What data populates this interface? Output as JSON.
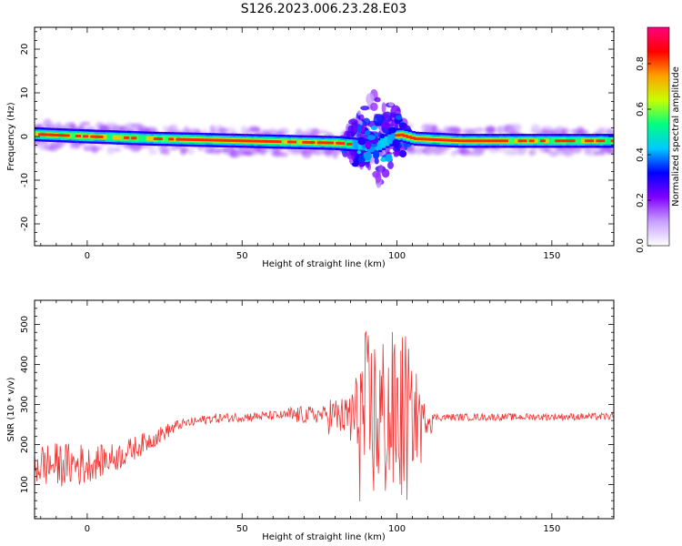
{
  "figure": {
    "title": "S126.2023.006.23.28.E03"
  },
  "chart_data": [
    {
      "type": "heatmap",
      "xlabel": "Height of straight line (km)",
      "ylabel": "Frequency (Hz)",
      "xlim": [
        -17,
        170
      ],
      "ylim": [
        -25,
        25
      ],
      "xticks": [
        0,
        50,
        100,
        150
      ],
      "yticks": [
        -20,
        -10,
        0,
        10,
        20
      ],
      "colorbar": {
        "label": "Normalized spectral amplitude",
        "range": [
          0.0,
          0.96
        ],
        "ticks": [
          0.0,
          0.2,
          0.4,
          0.6,
          0.8
        ],
        "colormap": [
          "#ffffff",
          "#c8a0ff",
          "#8000ff",
          "#0000ff",
          "#00c8ff",
          "#00ff80",
          "#c8ff00",
          "#ffa000",
          "#ff0000",
          "#ff0080"
        ]
      },
      "ridge": {
        "description_values": [
          {
            "x": -17,
            "freq": 0.5
          },
          {
            "x": 0,
            "freq": 0.0
          },
          {
            "x": 20,
            "freq": -0.5
          },
          {
            "x": 50,
            "freq": -1.0
          },
          {
            "x": 80,
            "freq": -1.5
          },
          {
            "x": 88,
            "freq": -2.0
          },
          {
            "x": 92,
            "freq": -2.5
          },
          {
            "x": 96,
            "freq": -1.0
          },
          {
            "x": 100,
            "freq": 0.5
          },
          {
            "x": 105,
            "freq": -0.5
          },
          {
            "x": 120,
            "freq": -1.0
          },
          {
            "x": 170,
            "freq": -1.0
          }
        ],
        "scatter_region": {
          "x": [
            82,
            104
          ],
          "freq": [
            -12,
            17
          ]
        }
      }
    },
    {
      "type": "line",
      "xlabel": "Height of straight line (km)",
      "ylabel": "SNR (10 * v/v)",
      "xlim": [
        -17,
        170
      ],
      "ylim": [
        15,
        560
      ],
      "xticks": [
        0,
        50,
        100,
        150
      ],
      "yticks": [
        100,
        200,
        300,
        400,
        500
      ],
      "series": [
        {
          "color": "#ee3333",
          "trend": [
            {
              "x": -17,
              "y": 150
            },
            {
              "x": 0,
              "y": 150
            },
            {
              "x": 10,
              "y": 170
            },
            {
              "x": 20,
              "y": 210
            },
            {
              "x": 30,
              "y": 250
            },
            {
              "x": 40,
              "y": 265
            },
            {
              "x": 60,
              "y": 272
            },
            {
              "x": 78,
              "y": 275
            },
            {
              "x": 80,
              "y": 270
            },
            {
              "x": 100,
              "y": 265
            },
            {
              "x": 110,
              "y": 268
            },
            {
              "x": 170,
              "y": 270
            }
          ]
        }
      ]
    }
  ]
}
